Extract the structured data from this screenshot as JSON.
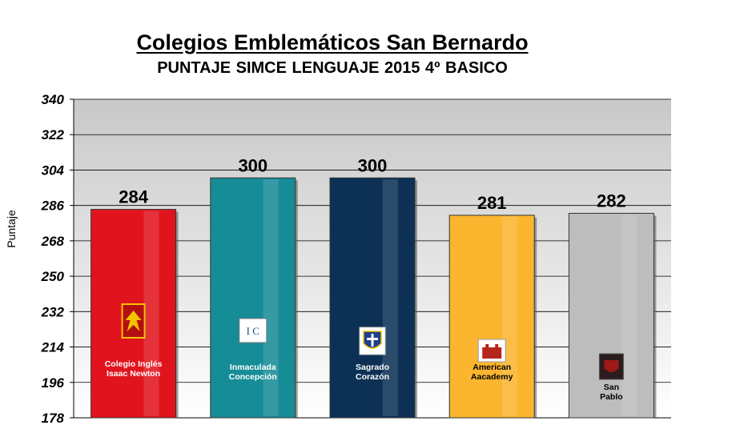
{
  "chart_data": {
    "type": "bar",
    "title": "Colegios Emblemáticos San Bernardo",
    "subtitle": "PUNTAJE SIMCE LENGUAJE 2015   4º BASICO",
    "ylabel": "Puntaje",
    "xlabel": "",
    "ylim": [
      178,
      340
    ],
    "yticks": [
      178,
      196,
      214,
      232,
      250,
      268,
      286,
      304,
      322,
      340
    ],
    "grid": true,
    "categories": [
      {
        "lines": [
          "Colegio Inglés",
          "Isaac Newton"
        ],
        "color": "#e1141e",
        "text_color": "#ffffff",
        "icon": "eagle-crest-icon"
      },
      {
        "lines": [
          "Inmaculada",
          "Concepción"
        ],
        "color": "#168c97",
        "text_color": "#ffffff",
        "icon": "ic-crest-icon"
      },
      {
        "lines": [
          "Sagrado",
          "Corazón"
        ],
        "color": "#0c3154",
        "text_color": "#ffffff",
        "icon": "shield-crest-icon"
      },
      {
        "lines": [
          "American",
          "Aacademy"
        ],
        "color": "#fbb52f",
        "text_color": "#000000",
        "icon": "castle-crest-icon"
      },
      {
        "lines": [
          "San",
          "Pablo"
        ],
        "color": "#bdbdbd",
        "text_color": "#000000",
        "icon": "dark-shield-crest-icon"
      }
    ],
    "values": [
      284,
      300,
      300,
      281,
      282
    ]
  }
}
